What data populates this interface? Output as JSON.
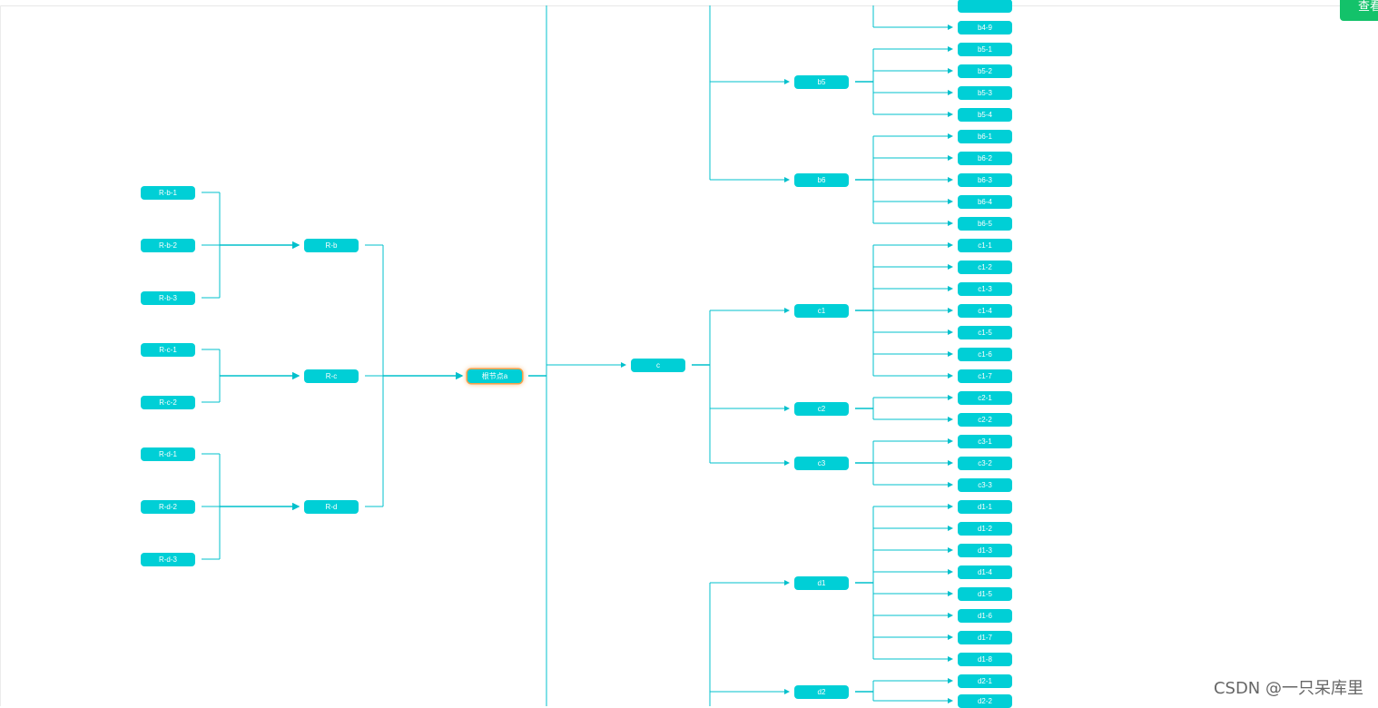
{
  "colors": {
    "node_fill": "#00cfd6",
    "edge": "#00c0cc",
    "root_glow": "#f5a04a",
    "button": "#13c26a"
  },
  "toolbar": {
    "view_label": "查看"
  },
  "watermark": "CSDN @一只呆库里",
  "tree": {
    "root": "根节点a",
    "left": [
      {
        "label": "R-b",
        "children": [
          "R-b-1",
          "R-b-2",
          "R-b-3"
        ]
      },
      {
        "label": "R-c",
        "children": [
          "R-c-1",
          "R-c-2"
        ]
      },
      {
        "label": "R-d",
        "children": [
          "R-d-1",
          "R-d-2",
          "R-d-3"
        ]
      }
    ],
    "right": [
      {
        "label": "c",
        "children": [
          {
            "label": "c1",
            "children": [
              "c1-1",
              "c1-2",
              "c1-3",
              "c1-4",
              "c1-5",
              "c1-6",
              "c1-7"
            ]
          },
          {
            "label": "c2",
            "children": [
              "c2-1",
              "c2-2"
            ]
          },
          {
            "label": "c3",
            "children": [
              "c3-1",
              "c3-2",
              "c3-3"
            ]
          }
        ]
      },
      {
        "label": "b5",
        "children": [
          "b5-1",
          "b5-2",
          "b5-3",
          "b5-4"
        ]
      },
      {
        "label": "b6",
        "children": [
          "b6-1",
          "b6-2",
          "b6-3",
          "b6-4",
          "b6-5"
        ]
      },
      {
        "label": "d1",
        "children": [
          "d1-1",
          "d1-2",
          "d1-3",
          "d1-4",
          "d1-5",
          "d1-6",
          "d1-7",
          "d1-8"
        ]
      },
      {
        "label": "d2",
        "children": [
          "d2-1",
          "d2-2"
        ]
      }
    ],
    "partial_visible_leaves": [
      "b4-9"
    ]
  }
}
